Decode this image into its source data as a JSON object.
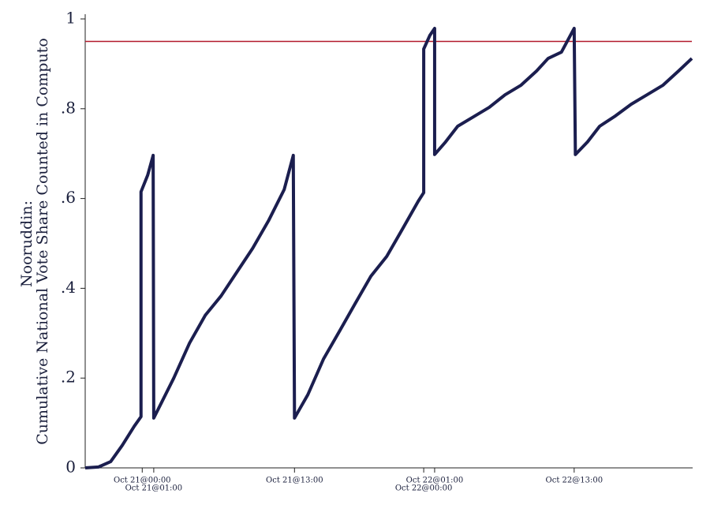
{
  "chart_data": {
    "type": "line",
    "ylabel": [
      "Nooruddin:",
      "Cumulative National Vote Share Counted in Computo"
    ],
    "x": [
      0,
      2.2,
      4.2,
      6.1,
      8.1,
      9.2,
      9.2,
      10.3,
      11.2,
      11.3,
      12.6,
      14.6,
      17.2,
      19.8,
      22.4,
      25,
      27.6,
      30.2,
      32.8,
      34.3,
      34.5,
      36.7,
      39.3,
      41.9,
      44.5,
      47.1,
      49.7,
      52.3,
      54.9,
      55.8,
      55.8,
      56.8,
      57.6,
      57.6,
      59.4,
      61.4,
      64,
      66.6,
      69.2,
      71.8,
      74.4,
      76.3,
      78.5,
      80.6,
      80.8,
      82.8,
      84.8,
      87.4,
      90,
      92.6,
      95.2,
      97.8,
      100
    ],
    "series": [
      {
        "color": "#1b1e4f",
        "values": [
          0,
          0.002,
          0.014,
          0.05,
          0.093,
          0.114,
          0.615,
          0.652,
          0.696,
          0.111,
          0.146,
          0.2,
          0.278,
          0.34,
          0.383,
          0.436,
          0.489,
          0.55,
          0.62,
          0.696,
          0.111,
          0.163,
          0.243,
          0.304,
          0.366,
          0.427,
          0.471,
          0.532,
          0.594,
          0.613,
          0.933,
          0.963,
          0.979,
          0.698,
          0.726,
          0.761,
          0.782,
          0.803,
          0.831,
          0.852,
          0.884,
          0.912,
          0.926,
          0.979,
          0.698,
          0.726,
          0.761,
          0.784,
          0.81,
          0.831,
          0.852,
          0.884,
          0.912
        ]
      }
    ],
    "reference_line": {
      "value": 0.95,
      "color": "#b2182b"
    },
    "xlim": [
      0,
      100
    ],
    "xticks": [
      {
        "value": 9.4,
        "label": "Oct 21@00:00"
      },
      {
        "value": 11.3,
        "label": "Oct 21@01:00"
      },
      {
        "value": 34.5,
        "label": "Oct 21@13:00"
      },
      {
        "value": 55.8,
        "label": "Oct 22@00:00"
      },
      {
        "value": 57.6,
        "label": "Oct 22@01:00"
      },
      {
        "value": 80.6,
        "label": "Oct 22@13:00"
      }
    ],
    "ylim": [
      0,
      1
    ],
    "yticks": [
      0,
      {
        "value": 0.2,
        "label": ".2"
      },
      {
        "value": 0.4,
        "label": ".4"
      },
      {
        "value": 0.6,
        "label": ".6"
      },
      {
        "value": 0.8,
        "label": ".8"
      },
      1
    ],
    "grid": false
  }
}
